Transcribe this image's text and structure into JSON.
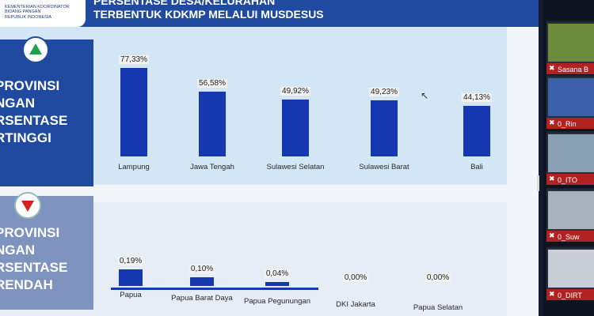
{
  "header": {
    "logo_lines": [
      "KEMENTERIAN KOORDINATOR",
      "BIDANG PANGAN",
      "REPUBLIK INDONESIA"
    ],
    "title_lines": [
      "PERSENTASE DESA/KELURAHAN",
      "TERBENTUK KDKMP MELALUI MUSDESUS"
    ]
  },
  "high_panel": {
    "side_lines": [
      "PROVINSI",
      "NGAN",
      "RSENTASE",
      "RTINGGI"
    ],
    "indicator_icon": "triangle-up-icon"
  },
  "low_panel": {
    "side_lines": [
      "PROVINSI",
      "NGAN",
      "RSENTASE",
      "RENDAH"
    ],
    "indicator_icon": "triangle-down-icon"
  },
  "chart_data": [
    {
      "type": "bar",
      "categories": [
        "Lampung",
        "Jawa Tengah",
        "Sulawesi Selatan",
        "Sulawesi Barat",
        "Bali"
      ],
      "values": [
        77.33,
        56.58,
        49.92,
        49.23,
        44.13
      ],
      "value_labels": [
        "77,33%",
        "56,58%",
        "49,92%",
        "49,23%",
        "44,13%"
      ],
      "ylim": [
        0,
        80
      ],
      "grid": false,
      "color": "#1538b0"
    },
    {
      "type": "bar",
      "categories": [
        "Papua",
        "Papua Barat Daya",
        "Papua Pegunungan",
        "DKI Jakarta",
        "Papua Selatan"
      ],
      "values": [
        0.19,
        0.1,
        0.04,
        0.0,
        0.0
      ],
      "value_labels": [
        "0,19%",
        "0,10%",
        "0,04%",
        "0,00%",
        "0,00%"
      ],
      "ylim": [
        0,
        0.4
      ],
      "grid": false,
      "color": "#1538b0"
    }
  ],
  "participants": [
    {
      "name": "Sasana B",
      "video": "#6b8a3a"
    },
    {
      "name": "0_Rin",
      "video": "#3b5fa8"
    },
    {
      "name": "0_ITO",
      "video": "#8aa0b4"
    },
    {
      "name": "0_Suw",
      "video": "#a8b2bd"
    },
    {
      "name": "0_DIRT",
      "video": "#c9ced6"
    }
  ],
  "colors": {
    "header": "#1f4aa0",
    "bar": "#1538b0",
    "name_bar": "#b32222"
  }
}
